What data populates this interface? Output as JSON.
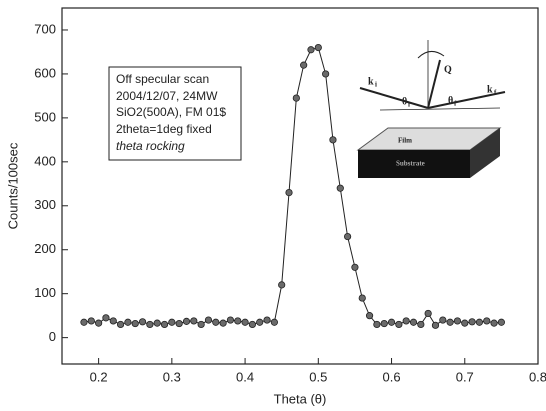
{
  "chart_data": {
    "type": "scatter",
    "xlabel": "Theta (θ)",
    "ylabel": "Counts/100sec",
    "xlim": [
      0.15,
      0.8
    ],
    "ylim": [
      -60,
      750
    ],
    "xticks": [
      0.2,
      0.3,
      0.4,
      0.5,
      0.6,
      0.7,
      0.8
    ],
    "yticks": [
      0,
      100,
      200,
      300,
      400,
      500,
      600,
      700
    ],
    "connect_line": true,
    "series": [
      {
        "color": "#6a6a6a",
        "x": [
          0.18,
          0.19,
          0.2,
          0.21,
          0.22,
          0.23,
          0.24,
          0.25,
          0.26,
          0.27,
          0.28,
          0.29,
          0.3,
          0.31,
          0.32,
          0.33,
          0.34,
          0.35,
          0.36,
          0.37,
          0.38,
          0.39,
          0.4,
          0.41,
          0.42,
          0.43,
          0.44,
          0.45,
          0.46,
          0.47,
          0.48,
          0.49,
          0.5,
          0.51,
          0.52,
          0.53,
          0.54,
          0.55,
          0.56,
          0.57,
          0.58,
          0.59,
          0.6,
          0.61,
          0.62,
          0.63,
          0.64,
          0.65,
          0.66,
          0.67,
          0.68,
          0.69,
          0.7,
          0.71,
          0.72,
          0.73,
          0.74,
          0.75
        ],
        "values": [
          35,
          38,
          33,
          45,
          38,
          30,
          35,
          32,
          36,
          30,
          33,
          30,
          35,
          32,
          37,
          38,
          30,
          40,
          35,
          33,
          40,
          38,
          35,
          30,
          35,
          40,
          35,
          120,
          330,
          545,
          620,
          655,
          660,
          600,
          450,
          340,
          230,
          160,
          90,
          50,
          30,
          32,
          35,
          30,
          38,
          35,
          30,
          55,
          28,
          40,
          35,
          38,
          33,
          36,
          35,
          38,
          33,
          35
        ]
      }
    ],
    "annotation_lines": [
      "Off specular scan",
      "2004/12/07, 24MW",
      "SiO2(500A), FM 01$",
      "2theta=1deg fixed",
      "theta rocking"
    ],
    "inset_labels": {
      "ki": "k",
      "ki_sub": "i",
      "theta_i": "θ",
      "theta_i_sub": "i",
      "theta_f": "θ",
      "theta_f_sub": "f",
      "kf": "k",
      "kf_sub": "f",
      "q": "Q",
      "film": "Film",
      "substrate": "Substrate"
    }
  }
}
